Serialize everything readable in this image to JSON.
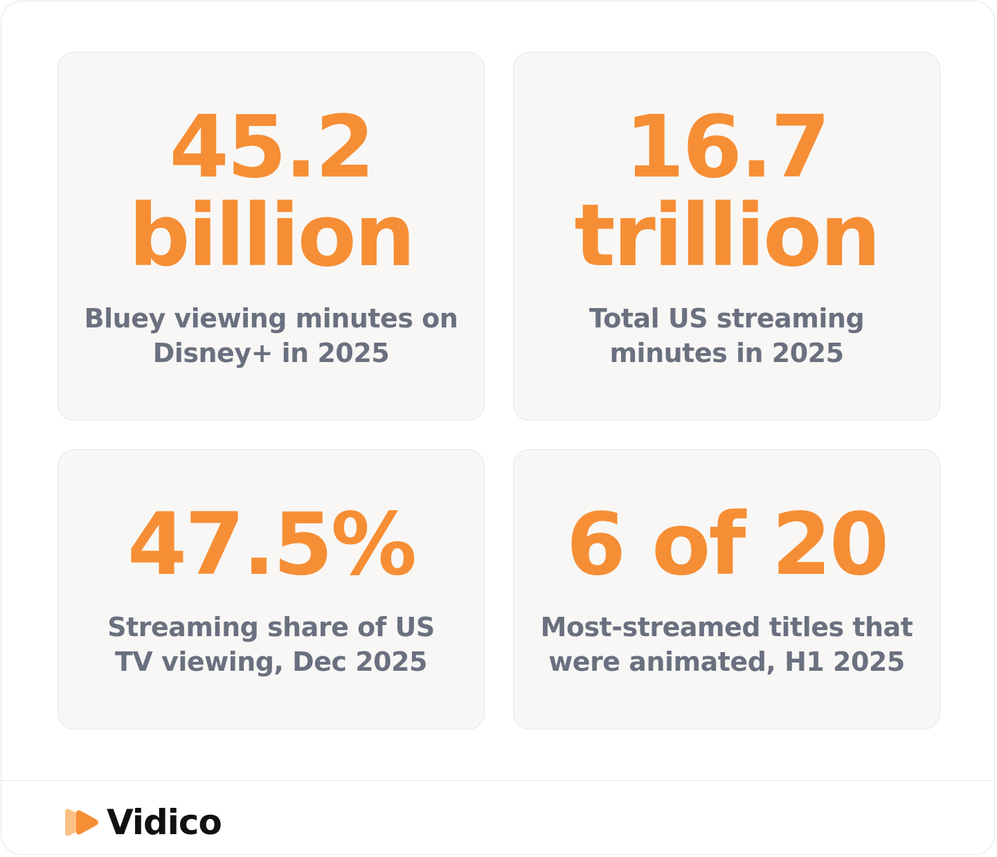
{
  "stats": [
    {
      "value_line1": "45.2",
      "value_line2": "billion",
      "desc_line1": "Bluey viewing minutes on",
      "desc_line2": "Disney+ in 2025"
    },
    {
      "value_line1": "16.7",
      "value_line2": "trillion",
      "desc_line1": "Total US streaming",
      "desc_line2": "minutes in 2025"
    },
    {
      "value": "47.5%",
      "desc_line1": "Streaming share of US",
      "desc_line2": "TV viewing, Dec 2025"
    },
    {
      "value": "6 of 20",
      "desc_line1": "Most-streamed titles that",
      "desc_line2": "were animated, H1 2025"
    }
  ],
  "footer": {
    "brand_name": "Vidico",
    "brand_icon": "play-logo-icon"
  },
  "colors": {
    "accent": "#f68e35",
    "text_muted": "#6b7080",
    "card_bg": "#f8f7f5",
    "brand_text": "#111111"
  }
}
